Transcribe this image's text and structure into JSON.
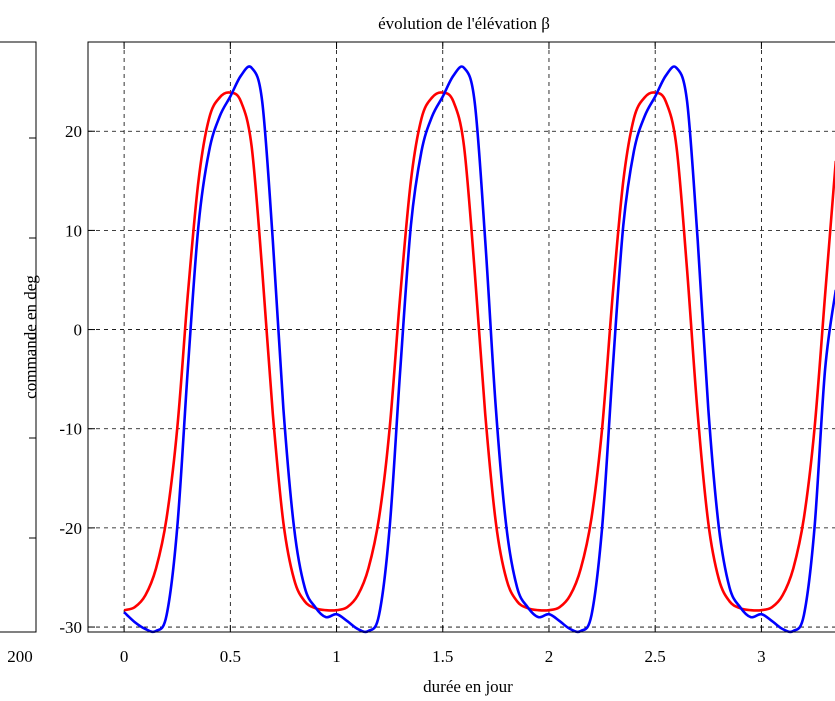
{
  "chart_data": {
    "type": "line",
    "title": "évolution de l'élévation β",
    "xlabel": "durée en jour",
    "ylabel": "commande en deg",
    "xlim": [
      -0.17,
      3.37
    ],
    "ylim": [
      -30.5,
      29
    ],
    "xticks": [
      0,
      0.5,
      1,
      1.5,
      2,
      2.5,
      3
    ],
    "xtick_labels": [
      "0",
      "0.5",
      "1",
      "1.5",
      "2",
      "2.5",
      "3"
    ],
    "yticks": [
      -30,
      -20,
      -10,
      0,
      10,
      20
    ],
    "ytick_labels": [
      "-30",
      "-20",
      "-10",
      "0",
      "10",
      "20"
    ],
    "grid": true,
    "left_panel": {
      "tick_label": "200"
    },
    "series": [
      {
        "color": "#ff0000",
        "x": [
          0,
          0.05,
          0.1,
          0.15,
          0.2,
          0.25,
          0.3,
          0.35,
          0.4,
          0.45,
          0.5,
          0.55,
          0.6,
          0.65,
          0.7,
          0.75,
          0.8,
          0.85,
          0.9,
          0.95,
          1.0,
          1.05,
          1.1,
          1.15,
          1.2,
          1.25,
          1.3,
          1.35,
          1.4,
          1.45,
          1.5,
          1.55,
          1.6,
          1.65,
          1.7,
          1.75,
          1.8,
          1.85,
          1.9,
          1.95,
          2.0,
          2.05,
          2.1,
          2.15,
          2.2,
          2.25,
          2.3,
          2.35,
          2.4,
          2.45,
          2.5,
          2.55,
          2.6,
          2.65,
          2.7,
          2.75,
          2.8,
          2.85,
          2.9,
          2.95,
          3.0,
          3.05,
          3.1,
          3.15,
          3.2,
          3.25,
          3.3,
          3.35
        ],
        "y": [
          -28.3,
          -28.0,
          -26.8,
          -24.1,
          -19.0,
          -10.0,
          3.5,
          15.0,
          21.3,
          23.4,
          23.9,
          23.0,
          18.5,
          6.0,
          -8.5,
          -19.5,
          -25.2,
          -27.4,
          -28.1,
          -28.3,
          -28.3,
          -28.0,
          -26.8,
          -24.1,
          -19.0,
          -10.0,
          3.5,
          15.0,
          21.3,
          23.4,
          23.9,
          23.0,
          18.5,
          6.0,
          -8.5,
          -19.5,
          -25.2,
          -27.4,
          -28.1,
          -28.3,
          -28.3,
          -28.0,
          -26.8,
          -24.1,
          -19.0,
          -10.0,
          3.5,
          15.0,
          21.3,
          23.4,
          23.9,
          23.0,
          18.5,
          6.0,
          -8.5,
          -19.5,
          -25.2,
          -27.4,
          -28.1,
          -28.3,
          -28.3,
          -28.0,
          -26.8,
          -24.1,
          -19.0,
          -10.0,
          3.5,
          17.0
        ]
      },
      {
        "color": "#0000ff",
        "x": [
          0,
          0.05,
          0.1,
          0.15,
          0.2,
          0.25,
          0.3,
          0.35,
          0.4,
          0.45,
          0.5,
          0.55,
          0.6,
          0.65,
          0.7,
          0.75,
          0.8,
          0.85,
          0.9,
          0.95,
          1.0,
          1.05,
          1.1,
          1.15,
          1.2,
          1.25,
          1.3,
          1.35,
          1.4,
          1.45,
          1.5,
          1.55,
          1.6,
          1.65,
          1.7,
          1.75,
          1.8,
          1.85,
          1.9,
          1.95,
          2.0,
          2.05,
          2.1,
          2.15,
          2.2,
          2.25,
          2.3,
          2.35,
          2.4,
          2.45,
          2.5,
          2.55,
          2.6,
          2.65,
          2.7,
          2.75,
          2.8,
          2.85,
          2.9,
          2.95,
          3.0,
          3.05,
          3.1,
          3.15,
          3.2,
          3.25,
          3.3,
          3.35
        ],
        "y": [
          -28.5,
          -29.5,
          -30.2,
          -30.4,
          -28.8,
          -20.0,
          -4.0,
          10.5,
          18.0,
          21.5,
          23.5,
          25.6,
          26.4,
          23.0,
          9.0,
          -8.0,
          -20.0,
          -26.0,
          -28.0,
          -29.0,
          -28.7,
          -29.4,
          -30.2,
          -30.4,
          -28.8,
          -20.0,
          -4.0,
          10.5,
          18.0,
          21.5,
          23.5,
          25.6,
          26.4,
          23.0,
          9.0,
          -8.0,
          -20.0,
          -26.0,
          -28.0,
          -29.0,
          -28.7,
          -29.4,
          -30.2,
          -30.4,
          -28.8,
          -20.0,
          -4.0,
          10.5,
          18.0,
          21.5,
          23.5,
          25.6,
          26.4,
          23.0,
          9.0,
          -8.0,
          -20.0,
          -26.0,
          -28.0,
          -29.0,
          -28.7,
          -29.4,
          -30.2,
          -30.4,
          -28.8,
          -20.0,
          -4.0,
          4.0
        ]
      }
    ]
  }
}
